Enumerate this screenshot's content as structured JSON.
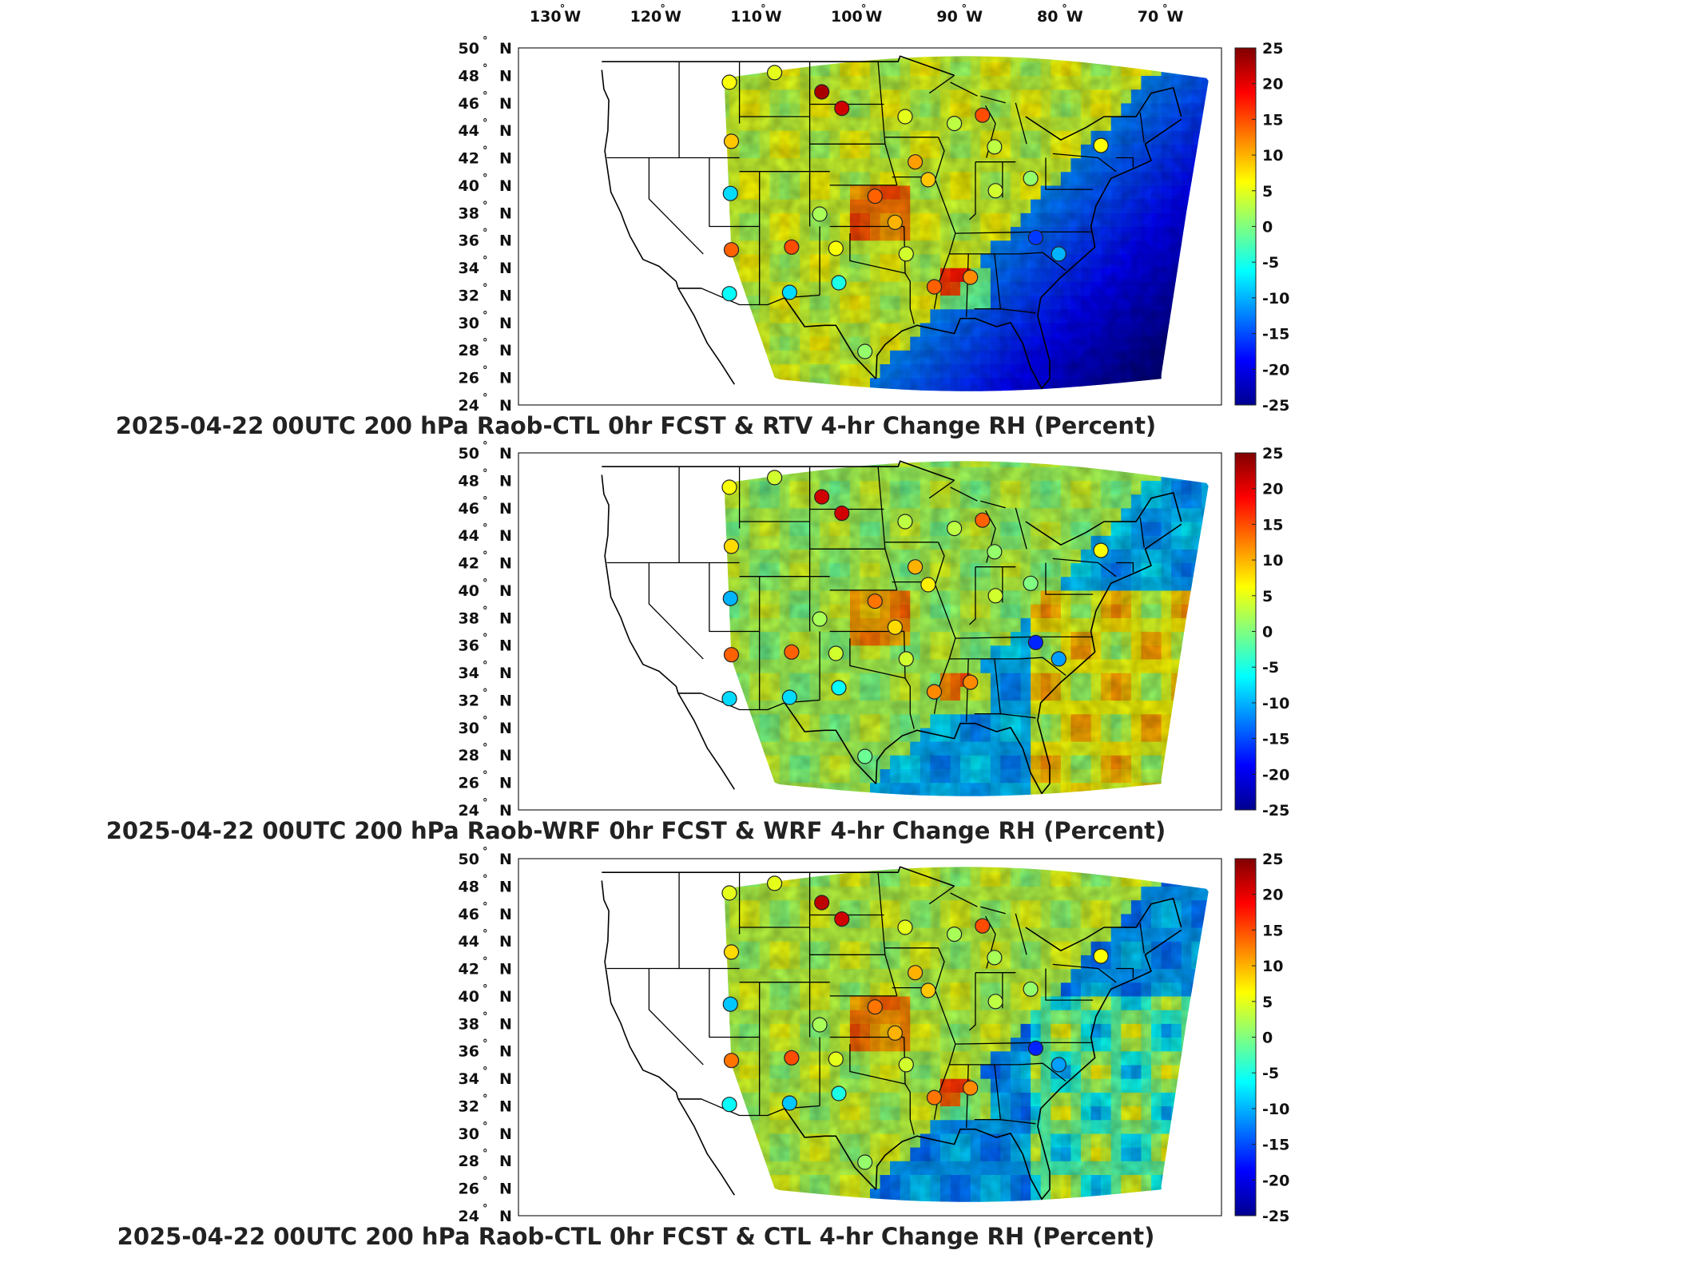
{
  "figure": {
    "lon_labels": [
      "130",
      "120",
      "110",
      "100",
      "90",
      "80",
      "70"
    ],
    "lat_labels": [
      "50",
      "48",
      "46",
      "44",
      "42",
      "40",
      "38",
      "36",
      "34",
      "32",
      "30",
      "28",
      "26",
      "24"
    ],
    "lon_suffix": "W",
    "lat_suffix": "N",
    "degree_symbol": "°",
    "colorbar_ticks": [
      "25",
      "20",
      "15",
      "10",
      "5",
      "0",
      "-5",
      "-10",
      "-15",
      "-20",
      "-25"
    ],
    "colorbar_range": [
      -25,
      25
    ],
    "colormap": "jet"
  },
  "panels": [
    {
      "title": "2025-04-22 00UTC 200 hPa Raob-CTL 0hr FCST & RTV 4-hr Change RH (Percent)"
    },
    {
      "title": "2025-04-22 00UTC 200 hPa Raob-WRF 0hr FCST & WRF 4-hr Change RH (Percent)"
    },
    {
      "title": "2025-04-22 00UTC 200 hPa Raob-CTL 0hr FCST & CTL 4-hr Change RH (Percent)"
    }
  ],
  "raob_stations": [
    {
      "lon": -112.0,
      "lat": 47.5,
      "value": 6
    },
    {
      "lon": -107.5,
      "lat": 48.2,
      "value": 5
    },
    {
      "lon": -102.8,
      "lat": 46.8,
      "value": 23
    },
    {
      "lon": -100.8,
      "lat": 45.6,
      "value": 21
    },
    {
      "lon": -111.8,
      "lat": 43.2,
      "value": 9
    },
    {
      "lon": -94.5,
      "lat": 45.0,
      "value": 5
    },
    {
      "lon": -89.6,
      "lat": 44.5,
      "value": 3
    },
    {
      "lon": -86.8,
      "lat": 45.1,
      "value": 15
    },
    {
      "lon": -85.6,
      "lat": 42.8,
      "value": 3
    },
    {
      "lon": -75.0,
      "lat": 42.9,
      "value": 6
    },
    {
      "lon": -93.5,
      "lat": 41.7,
      "value": 11
    },
    {
      "lon": -92.2,
      "lat": 40.4,
      "value": 9
    },
    {
      "lon": -85.5,
      "lat": 39.6,
      "value": 4
    },
    {
      "lon": -82.0,
      "lat": 40.5,
      "value": 1
    },
    {
      "lon": -111.9,
      "lat": 39.4,
      "value": -8
    },
    {
      "lon": -103.0,
      "lat": 37.9,
      "value": 2
    },
    {
      "lon": -97.5,
      "lat": 39.2,
      "value": 14
    },
    {
      "lon": -95.5,
      "lat": 37.3,
      "value": 10
    },
    {
      "lon": -111.8,
      "lat": 35.3,
      "value": 14
    },
    {
      "lon": -105.8,
      "lat": 35.5,
      "value": 15
    },
    {
      "lon": -101.4,
      "lat": 35.4,
      "value": 6
    },
    {
      "lon": -94.4,
      "lat": 35.0,
      "value": 4
    },
    {
      "lon": -81.5,
      "lat": 36.2,
      "value": -16
    },
    {
      "lon": -112.0,
      "lat": 32.1,
      "value": -6
    },
    {
      "lon": -106.0,
      "lat": 32.2,
      "value": -8
    },
    {
      "lon": -101.1,
      "lat": 32.9,
      "value": -5
    },
    {
      "lon": -91.6,
      "lat": 32.6,
      "value": 14
    },
    {
      "lon": -88.0,
      "lat": 33.3,
      "value": 12
    },
    {
      "lon": -79.2,
      "lat": 35.0,
      "value": -10
    },
    {
      "lon": -98.5,
      "lat": 27.9,
      "value": 1
    }
  ]
}
